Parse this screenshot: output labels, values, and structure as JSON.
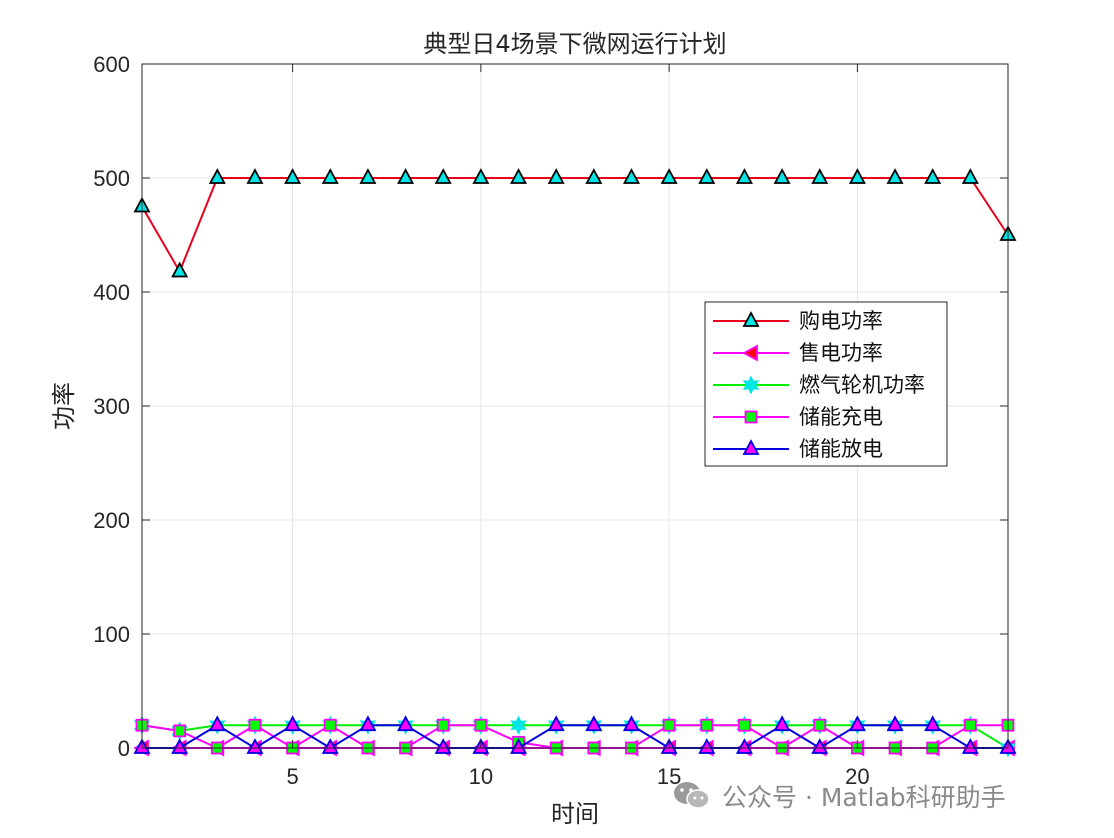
{
  "chart_data": {
    "type": "line",
    "title": "典型日4场景下微网运行计划",
    "xlabel": "时间",
    "ylabel": "功率",
    "xlim": [
      1,
      24
    ],
    "ylim": [
      0,
      600
    ],
    "xticks": [
      5,
      10,
      15,
      20
    ],
    "yticks": [
      0,
      100,
      200,
      300,
      400,
      500,
      600
    ],
    "grid": true,
    "legend_position": "right",
    "x": [
      1,
      2,
      3,
      4,
      5,
      6,
      7,
      8,
      9,
      10,
      11,
      12,
      13,
      14,
      15,
      16,
      17,
      18,
      19,
      20,
      21,
      22,
      23,
      24
    ],
    "series": [
      {
        "name": "购电功率",
        "color": "#e8001c",
        "marker": "triangle-up",
        "marker_face": "#00e5e5",
        "marker_edge": "#000000",
        "values": [
          475,
          418,
          500,
          500,
          500,
          500,
          500,
          500,
          500,
          500,
          500,
          500,
          500,
          500,
          500,
          500,
          500,
          500,
          500,
          500,
          500,
          500,
          500,
          450
        ]
      },
      {
        "name": "售电功率",
        "color": "#ff00ff",
        "marker": "triangle-left",
        "marker_face": "#ff0000",
        "marker_edge": "#ff00ff",
        "values": [
          0,
          0,
          0,
          0,
          0,
          0,
          0,
          0,
          0,
          0,
          0,
          0,
          0,
          0,
          0,
          0,
          0,
          0,
          0,
          0,
          0,
          0,
          0,
          0
        ]
      },
      {
        "name": "燃气轮机功率",
        "color": "#00ee00",
        "marker": "hexagram",
        "marker_face": "#00e5e5",
        "marker_edge": "#00e5e5",
        "values": [
          20,
          15,
          20,
          20,
          20,
          20,
          20,
          20,
          20,
          20,
          20,
          20,
          20,
          20,
          20,
          20,
          20,
          20,
          20,
          20,
          20,
          20,
          20,
          0
        ]
      },
      {
        "name": "储能充电",
        "color": "#ff00ff",
        "marker": "square",
        "marker_face": "#00ff00",
        "marker_edge": "#ff00ff",
        "values": [
          20,
          15,
          0,
          20,
          0,
          20,
          0,
          0,
          20,
          20,
          5,
          0,
          0,
          0,
          20,
          20,
          20,
          0,
          20,
          0,
          0,
          0,
          20,
          20
        ]
      },
      {
        "name": "储能放电",
        "color": "#0000dd",
        "marker": "triangle-up",
        "marker_face": "#ff00ff",
        "marker_edge": "#0000dd",
        "values": [
          0,
          0,
          20,
          0,
          20,
          0,
          20,
          20,
          0,
          0,
          0,
          20,
          20,
          20,
          0,
          0,
          0,
          20,
          0,
          20,
          20,
          20,
          0,
          0
        ]
      }
    ]
  },
  "watermark": {
    "text": "公众号 · Matlab科研助手",
    "icon": "wechat-icon"
  }
}
